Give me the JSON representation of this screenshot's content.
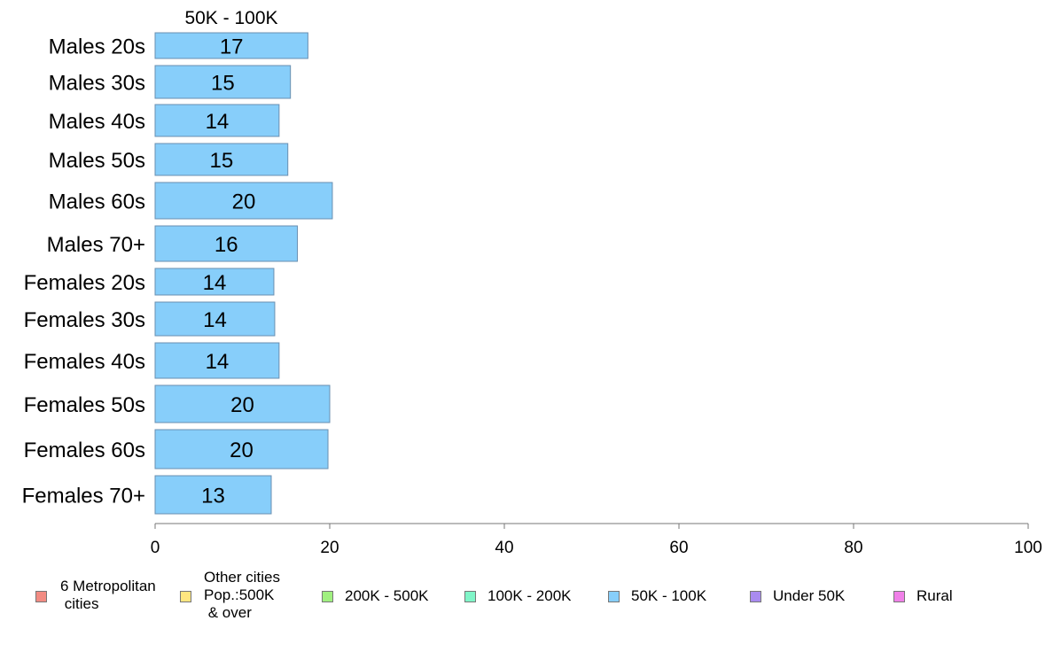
{
  "chart_data": {
    "type": "bar",
    "orientation": "horizontal",
    "title": "50K - 100K",
    "categories": [
      "Males 20s",
      "Males 30s",
      "Males 40s",
      "Males 50s",
      "Males 60s",
      "Males 70+",
      "Females 20s",
      "Females 30s",
      "Females 40s",
      "Females 50s",
      "Females 60s",
      "Females 70+"
    ],
    "values": [
      17.5,
      15.5,
      14.2,
      15.2,
      20.3,
      16.3,
      13.6,
      13.7,
      14.2,
      20.0,
      19.8,
      13.3
    ],
    "value_labels": [
      "17",
      "15",
      "14",
      "15",
      "20",
      "16",
      "14",
      "14",
      "14",
      "20",
      "20",
      "13"
    ],
    "xlim": [
      0,
      100
    ],
    "xticks": [
      0,
      20,
      40,
      60,
      80,
      100
    ],
    "grid": false,
    "bar_color": "#87CEFA",
    "legend_position": "bottom",
    "legend": [
      {
        "label": "6 Metropolitan\n cities",
        "color": "#F28B82"
      },
      {
        "label": "Other cities\nPop.:500K\n & over",
        "color": "#FFE680"
      },
      {
        "label": "200K - 500K",
        "color": "#A0F080"
      },
      {
        "label": "100K - 200K",
        "color": "#80F5C8"
      },
      {
        "label": "50K - 100K",
        "color": "#87CEFA"
      },
      {
        "label": "Under 50K",
        "color": "#A98BF0"
      },
      {
        "label": "Rural",
        "color": "#F080E8"
      }
    ]
  }
}
